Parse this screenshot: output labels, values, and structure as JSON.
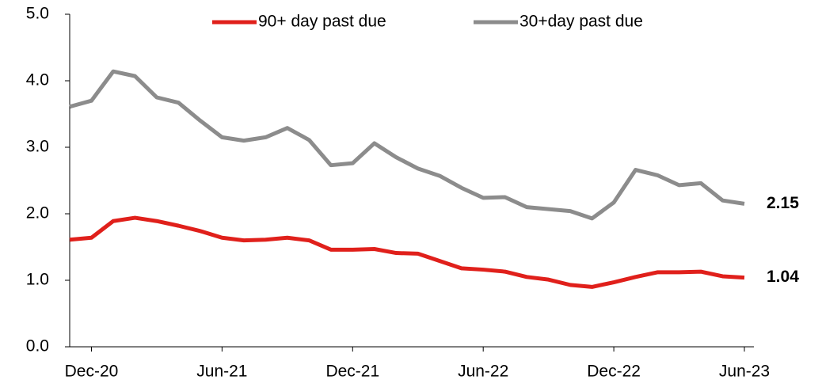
{
  "chart_data": {
    "type": "line",
    "categories": [
      null,
      "Dec-20",
      null,
      null,
      null,
      null,
      null,
      "Jun-21",
      null,
      null,
      null,
      null,
      null,
      "Dec-21",
      null,
      null,
      null,
      null,
      null,
      "Jun-22",
      null,
      null,
      null,
      null,
      null,
      "Dec-22",
      null,
      null,
      null,
      null,
      null,
      "Jun-23"
    ],
    "series": [
      {
        "name": "90+ day past due",
        "color": "#e0201b",
        "values": [
          1.61,
          1.64,
          1.89,
          1.94,
          1.89,
          1.82,
          1.74,
          1.64,
          1.6,
          1.61,
          1.64,
          1.6,
          1.46,
          1.46,
          1.47,
          1.41,
          1.4,
          1.29,
          1.18,
          1.16,
          1.13,
          1.05,
          1.01,
          0.93,
          0.9,
          0.97,
          1.05,
          1.12,
          1.12,
          1.13,
          1.06,
          1.04
        ]
      },
      {
        "name": "30+day past due",
        "color": "#8c8c8c",
        "values": [
          3.61,
          3.7,
          4.14,
          4.07,
          3.75,
          3.67,
          3.4,
          3.15,
          3.1,
          3.15,
          3.29,
          3.11,
          2.73,
          2.76,
          3.06,
          2.85,
          2.68,
          2.57,
          2.39,
          2.24,
          2.25,
          2.1,
          2.07,
          2.04,
          1.93,
          2.17,
          2.66,
          2.58,
          2.43,
          2.46,
          2.2,
          2.15
        ]
      }
    ],
    "ylim": [
      0,
      5
    ],
    "yticks": [
      {
        "value": 0,
        "label": "0.0"
      },
      {
        "value": 1,
        "label": "1.0"
      },
      {
        "value": 2,
        "label": "2.0"
      },
      {
        "value": 3,
        "label": "3.0"
      },
      {
        "value": 4,
        "label": "4.0"
      },
      {
        "value": 5,
        "label": "5.0"
      }
    ],
    "legend": "top"
  }
}
